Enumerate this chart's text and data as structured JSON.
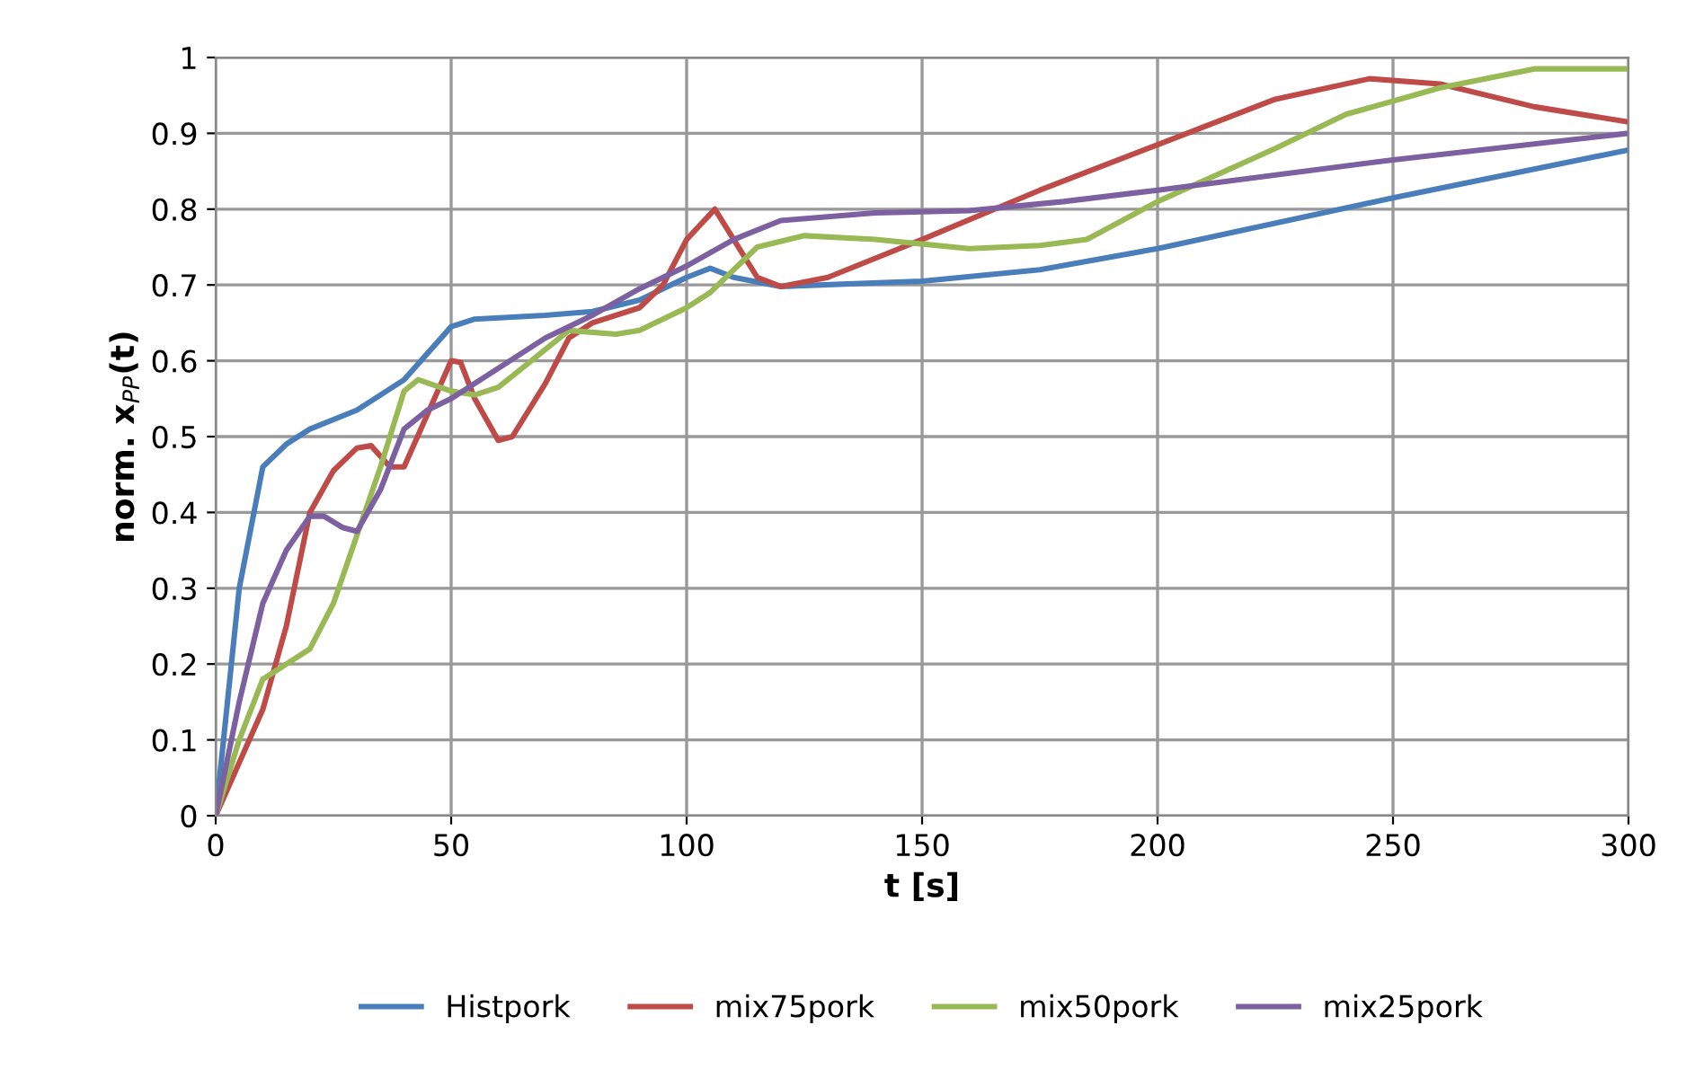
{
  "chart_data": {
    "type": "line",
    "xlabel": "t [s]",
    "ylabel": "norm. x$_{PP}$(t)",
    "xlim": [
      0,
      300
    ],
    "xticks": [
      0,
      50,
      100,
      150,
      200,
      250,
      300
    ],
    "ylim": [
      0,
      1
    ],
    "yticks": [
      0,
      0.1,
      0.2,
      0.3,
      0.4,
      0.5,
      0.6,
      0.7,
      0.8,
      0.9,
      1
    ],
    "grid": true,
    "legend": "bottom",
    "marker": "none",
    "line_style": "solid",
    "series": [
      {
        "name": "Histpork",
        "color": "#4a7ebb",
        "x": [
          0,
          5,
          10,
          15,
          20,
          30,
          40,
          50,
          55,
          70,
          80,
          90,
          100,
          105,
          110,
          120,
          150,
          175,
          200,
          250,
          300
        ],
        "values": [
          0,
          0.3,
          0.46,
          0.49,
          0.51,
          0.535,
          0.575,
          0.645,
          0.655,
          0.66,
          0.665,
          0.68,
          0.71,
          0.722,
          0.71,
          0.698,
          0.705,
          0.72,
          0.748,
          0.815,
          0.878
        ]
      },
      {
        "name": "mix75pork",
        "color": "#be4b48",
        "x": [
          0,
          10,
          15,
          20,
          25,
          30,
          33,
          37,
          40,
          45,
          50,
          52,
          55,
          60,
          63,
          70,
          75,
          80,
          90,
          95,
          100,
          106,
          110,
          115,
          120,
          130,
          150,
          175,
          200,
          225,
          245,
          260,
          280,
          300
        ],
        "values": [
          0,
          0.14,
          0.25,
          0.4,
          0.455,
          0.485,
          0.488,
          0.46,
          0.46,
          0.53,
          0.6,
          0.598,
          0.55,
          0.495,
          0.5,
          0.57,
          0.63,
          0.65,
          0.67,
          0.7,
          0.76,
          0.8,
          0.76,
          0.71,
          0.698,
          0.71,
          0.76,
          0.825,
          0.885,
          0.945,
          0.972,
          0.965,
          0.935,
          0.915
        ]
      },
      {
        "name": "mix50pork",
        "color": "#98b954",
        "x": [
          0,
          5,
          10,
          15,
          20,
          25,
          30,
          35,
          40,
          43,
          50,
          55,
          60,
          65,
          75,
          85,
          90,
          100,
          105,
          110,
          115,
          125,
          140,
          160,
          175,
          185,
          200,
          225,
          240,
          260,
          280,
          300
        ],
        "values": [
          0,
          0.1,
          0.18,
          0.2,
          0.22,
          0.28,
          0.37,
          0.46,
          0.56,
          0.575,
          0.56,
          0.555,
          0.565,
          0.59,
          0.64,
          0.635,
          0.64,
          0.67,
          0.69,
          0.72,
          0.75,
          0.765,
          0.76,
          0.748,
          0.752,
          0.76,
          0.81,
          0.88,
          0.925,
          0.96,
          0.985,
          0.985
        ]
      },
      {
        "name": "mix25pork",
        "color": "#7d60a0",
        "x": [
          0,
          5,
          10,
          15,
          20,
          23,
          27,
          30,
          35,
          40,
          45,
          50,
          60,
          70,
          80,
          90,
          100,
          110,
          120,
          140,
          160,
          180,
          200,
          250,
          300
        ],
        "values": [
          0,
          0.15,
          0.28,
          0.35,
          0.395,
          0.395,
          0.38,
          0.375,
          0.43,
          0.51,
          0.535,
          0.55,
          0.59,
          0.63,
          0.66,
          0.695,
          0.725,
          0.76,
          0.785,
          0.795,
          0.798,
          0.81,
          0.825,
          0.865,
          0.9
        ]
      }
    ]
  }
}
